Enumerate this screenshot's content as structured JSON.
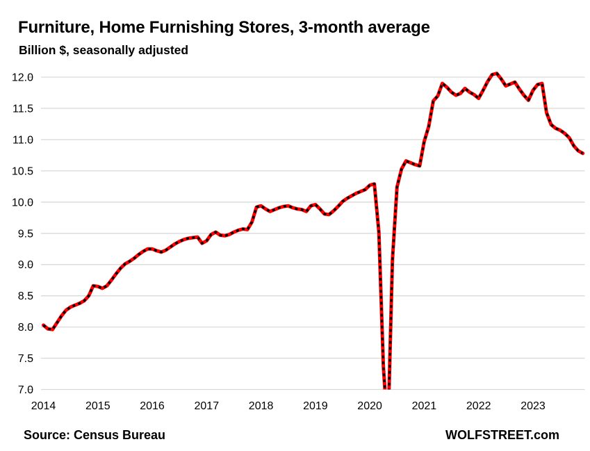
{
  "header": {
    "title": "Furniture, Home Furnishing Stores, 3-month average",
    "subtitle": "Billion $, seasonally adjusted"
  },
  "footer": {
    "source": "Source: Census Bureau",
    "brand": "WOLFSTREET.com"
  },
  "colors": {
    "line_red": "#FF0000",
    "dash_overlay_black": "#000000",
    "gridline": "#D9D9D9",
    "axis_tick": "#A6A6A6",
    "text": "#000000"
  },
  "chart_data": {
    "type": "line",
    "title": "Furniture, Home Furnishing Stores, 3-month average",
    "subtitle": "Billion $, seasonally adjusted",
    "xlabel": "",
    "ylabel": "Billion $, seasonally adjusted",
    "ylim": [
      7.0,
      12.0
    ],
    "y_ticks": [
      7.0,
      7.5,
      8.0,
      8.5,
      9.0,
      9.5,
      10.0,
      10.5,
      11.0,
      11.5,
      12.0
    ],
    "x_tick_labels": [
      "2014",
      "2015",
      "2016",
      "2017",
      "2018",
      "2019",
      "2020",
      "2021",
      "2022",
      "2023"
    ],
    "frequency": "monthly",
    "grid": "horizontal-only",
    "legend": "none",
    "plunge_clipped_at_ymin": true,
    "series": [
      {
        "name": "Furniture and home furnishing store sales, 3-month average, billion $",
        "line_color": "#FF0000",
        "overlay_style": "black dashed over red line",
        "values_by_year": {
          "2014": [
            8.03,
            7.97,
            7.96,
            8.07,
            8.18,
            8.27,
            8.32,
            8.35,
            8.38,
            8.42,
            8.5,
            8.66
          ],
          "2015": [
            8.65,
            8.62,
            8.66,
            8.75,
            8.85,
            8.94,
            9.01,
            9.05,
            9.1,
            9.16,
            9.21,
            9.25
          ],
          "2016": [
            9.25,
            9.22,
            9.2,
            9.23,
            9.28,
            9.33,
            9.37,
            9.4,
            9.42,
            9.43,
            9.44,
            9.34
          ],
          "2017": [
            9.38,
            9.48,
            9.52,
            9.47,
            9.46,
            9.48,
            9.52,
            9.55,
            9.57,
            9.56,
            9.68,
            9.92
          ],
          "2018": [
            9.94,
            9.89,
            9.85,
            9.88,
            9.91,
            9.93,
            9.94,
            9.91,
            9.89,
            9.88,
            9.85,
            9.94
          ],
          "2019": [
            9.96,
            9.89,
            9.81,
            9.8,
            9.86,
            9.93,
            10.01,
            10.06,
            10.1,
            10.14,
            10.17,
            10.2
          ],
          "2020": [
            10.27,
            10.29,
            9.52,
            7.36,
            6.3,
            9.07,
            10.24,
            10.53,
            10.66,
            10.63,
            10.6,
            10.58
          ],
          "2021": [
            10.97,
            11.21,
            11.62,
            11.7,
            11.9,
            11.84,
            11.76,
            11.71,
            11.74,
            11.82,
            11.76,
            11.72
          ],
          "2022": [
            11.66,
            11.79,
            11.93,
            12.04,
            12.06,
            11.97,
            11.86,
            11.89,
            11.92,
            11.81,
            11.71,
            11.63
          ],
          "2023": [
            11.79,
            11.88,
            11.9,
            11.43,
            11.24,
            11.18,
            11.15,
            11.1,
            11.03,
            10.9,
            10.82,
            10.78
          ]
        }
      }
    ]
  }
}
